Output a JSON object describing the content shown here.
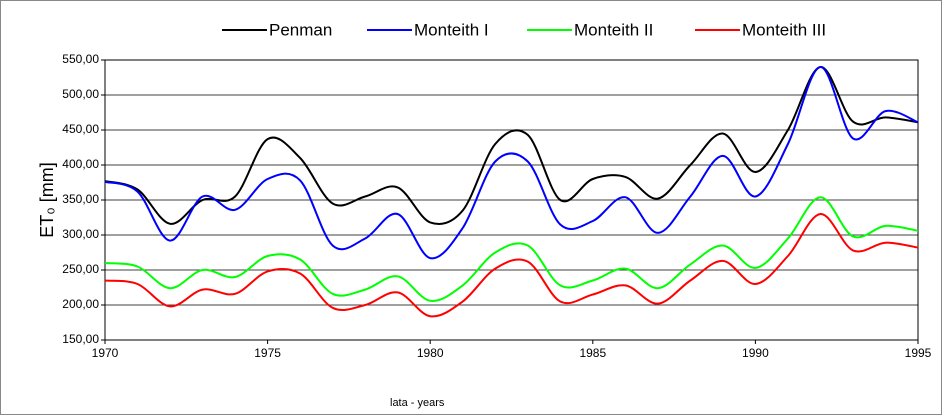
{
  "chart_data": {
    "type": "line",
    "x_label": "lata - years",
    "y_label": "ET₀ [mm]",
    "x": [
      1970,
      1971,
      1972,
      1973,
      1974,
      1975,
      1976,
      1977,
      1978,
      1979,
      1980,
      1981,
      1982,
      1983,
      1984,
      1985,
      1986,
      1987,
      1988,
      1989,
      1990,
      1991,
      1992,
      1993,
      1994,
      1995
    ],
    "series": [
      {
        "name": "Penman",
        "color": "#000000",
        "values": [
          377,
          365,
          316,
          350,
          355,
          437,
          410,
          345,
          355,
          368,
          318,
          335,
          430,
          443,
          350,
          380,
          383,
          352,
          400,
          445,
          390,
          450,
          540,
          462,
          468,
          461
        ]
      },
      {
        "name": "Monteith I",
        "color": "#0000ff",
        "values": [
          376,
          362,
          292,
          355,
          336,
          380,
          378,
          285,
          295,
          330,
          267,
          310,
          405,
          405,
          315,
          320,
          354,
          303,
          355,
          413,
          355,
          430,
          540,
          438,
          477,
          461
        ]
      },
      {
        "name": "Monteith II",
        "color": "#00ff00",
        "values": [
          260,
          255,
          224,
          250,
          240,
          270,
          265,
          216,
          222,
          241,
          206,
          228,
          275,
          285,
          228,
          235,
          252,
          224,
          258,
          285,
          253,
          295,
          354,
          298,
          313,
          306
        ]
      },
      {
        "name": "Monteith III",
        "color": "#ff0000",
        "values": [
          235,
          230,
          198,
          222,
          216,
          248,
          245,
          196,
          200,
          218,
          184,
          205,
          252,
          262,
          205,
          215,
          228,
          202,
          235,
          263,
          230,
          270,
          330,
          278,
          289,
          282
        ]
      }
    ],
    "xlim": [
      1970,
      1995
    ],
    "xticks": [
      1970,
      1975,
      1980,
      1985,
      1990,
      1995
    ],
    "ylim": [
      150,
      550
    ],
    "yticks": [
      {
        "value": 150,
        "label": "150,00"
      },
      {
        "value": 200,
        "label": "200,00"
      },
      {
        "value": 250,
        "label": "250,00"
      },
      {
        "value": 300,
        "label": "300,00"
      },
      {
        "value": 350,
        "label": "350,00"
      },
      {
        "value": 400,
        "label": "400,00"
      },
      {
        "value": 450,
        "label": "450,00"
      },
      {
        "value": 500,
        "label": "500,00"
      },
      {
        "value": 550,
        "label": "550,00"
      }
    ],
    "grid": true,
    "smooth": true,
    "legend": "top"
  }
}
